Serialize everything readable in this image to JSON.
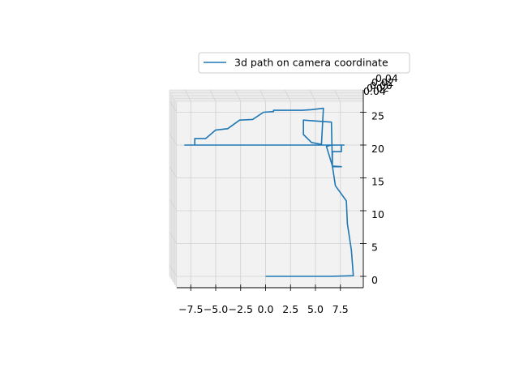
{
  "chart_data": {
    "type": "line",
    "projection": "3d",
    "view": "looking along z axis",
    "grid": true,
    "legend": {
      "placement": "top-right",
      "entries": [
        "3d path on camera coordinate"
      ]
    },
    "series": [
      {
        "name": "3d path on camera coordinate",
        "color": "#1f77b4",
        "points": [
          [
            0.0,
            0.0
          ],
          [
            6.5,
            0.0
          ],
          [
            8.8,
            0.1
          ],
          [
            8.6,
            4.0
          ],
          [
            8.2,
            8.0
          ],
          [
            8.1,
            11.5
          ],
          [
            7.0,
            13.8
          ],
          [
            6.7,
            16.8
          ],
          [
            6.3,
            18.8
          ],
          [
            6.1,
            19.8
          ],
          [
            6.6,
            20.0
          ],
          [
            7.6,
            20.0
          ],
          [
            7.6,
            19.0
          ],
          [
            6.7,
            19.0
          ],
          [
            6.7,
            16.8
          ],
          [
            7.6,
            16.7
          ],
          [
            6.7,
            16.7
          ],
          [
            6.6,
            23.5
          ],
          [
            3.8,
            23.8
          ],
          [
            3.8,
            21.6
          ],
          [
            4.6,
            20.4
          ],
          [
            5.6,
            20.1
          ],
          [
            5.8,
            25.6
          ],
          [
            4.6,
            25.4
          ],
          [
            3.7,
            25.3
          ],
          [
            0.8,
            25.3
          ],
          [
            0.8,
            25.1
          ],
          [
            -0.2,
            25.0
          ],
          [
            -1.3,
            23.9
          ],
          [
            -2.6,
            23.8
          ],
          [
            -3.8,
            22.5
          ],
          [
            -5.0,
            22.3
          ],
          [
            -6.0,
            21.0
          ],
          [
            -7.1,
            21.0
          ],
          [
            -7.1,
            20.0
          ],
          [
            -8.1,
            20.0
          ],
          [
            7.9,
            20.0
          ]
        ]
      }
    ],
    "x_ticks": [
      "−7.5",
      "−5.0",
      "−2.5",
      "0.0",
      "2.5",
      "5.0",
      "7.5"
    ],
    "y_ticks": [
      "0",
      "5",
      "10",
      "15",
      "20",
      "25"
    ],
    "z_ticks": [
      "0.04",
      "0.02",
      "0.00",
      "0.02",
      "0.04"
    ],
    "xlim": [
      -9,
      9.6
    ],
    "ylim": [
      -1,
      26.5
    ]
  }
}
